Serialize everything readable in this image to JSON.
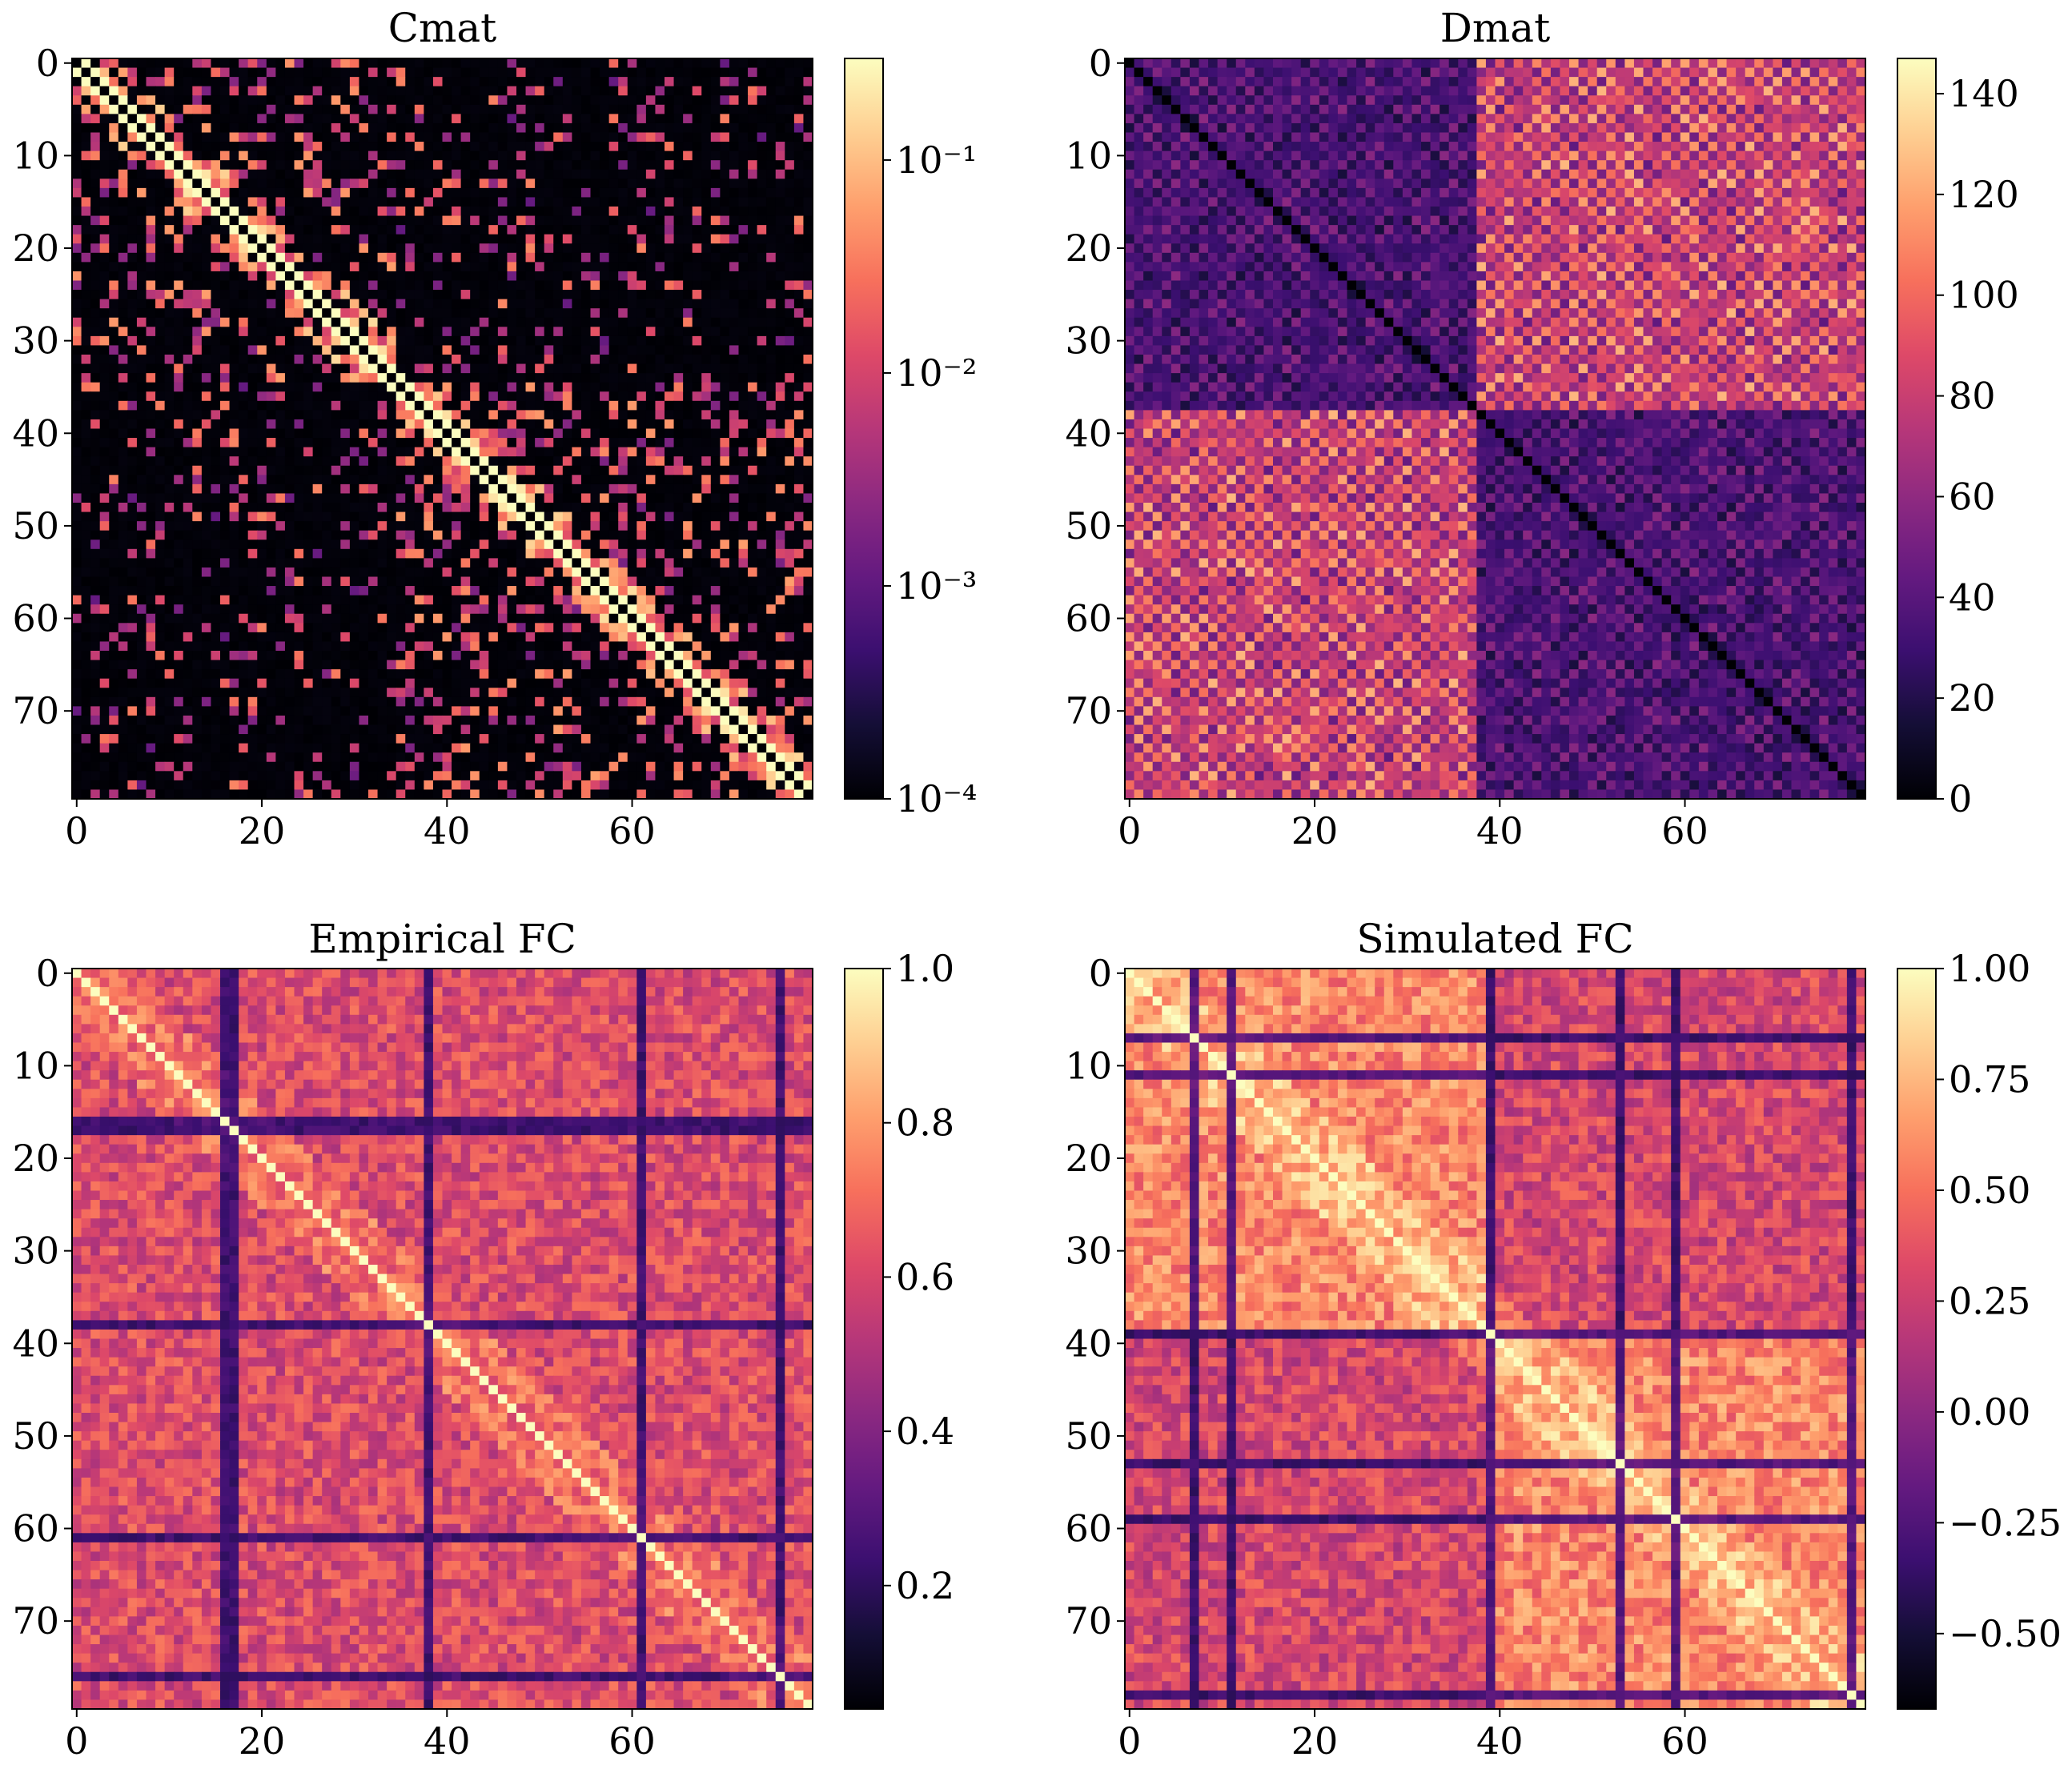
{
  "chart_data": [
    {
      "type": "heatmap",
      "title": "Cmat",
      "xlabel": "",
      "ylabel": "",
      "size": 80,
      "x_ticks": [
        "0",
        "20",
        "40",
        "60"
      ],
      "y_ticks": [
        "0",
        "10",
        "20",
        "30",
        "40",
        "50",
        "60",
        "70"
      ],
      "colormap": "magma",
      "color_scale": "log",
      "clim": [
        0.0001,
        0.3
      ],
      "colorbar_ticks": [
        "10⁻¹",
        "10⁻²",
        "10⁻³",
        "10⁻⁴"
      ],
      "colorbar_tick_values": [
        0.1,
        0.01,
        0.001,
        0.0001
      ],
      "blocks": [
        [
          0,
          35
        ],
        [
          35,
          80
        ]
      ],
      "description": "sparse structural connectivity, bright diagonal, checkerboard hemispheric pattern"
    },
    {
      "type": "heatmap",
      "title": "Dmat",
      "xlabel": "",
      "ylabel": "",
      "size": 80,
      "x_ticks": [
        "0",
        "20",
        "40",
        "60"
      ],
      "y_ticks": [
        "0",
        "10",
        "20",
        "30",
        "40",
        "50",
        "60",
        "70"
      ],
      "colormap": "magma",
      "color_scale": "linear",
      "clim": [
        0,
        147
      ],
      "colorbar_ticks": [
        "140",
        "120",
        "100",
        "80",
        "60",
        "40",
        "20",
        "0"
      ],
      "colorbar_tick_values": [
        140,
        120,
        100,
        80,
        60,
        40,
        20,
        0
      ],
      "blocks": [
        [
          0,
          38
        ],
        [
          38,
          80
        ]
      ]
    },
    {
      "type": "heatmap",
      "title": "Empirical FC",
      "xlabel": "",
      "ylabel": "",
      "size": 80,
      "x_ticks": [
        "0",
        "20",
        "40",
        "60"
      ],
      "y_ticks": [
        "0",
        "10",
        "20",
        "30",
        "40",
        "50",
        "60",
        "70"
      ],
      "colormap": "magma",
      "color_scale": "linear",
      "clim": [
        0.04,
        1.0
      ],
      "colorbar_ticks": [
        "1.0",
        "0.8",
        "0.6",
        "0.4",
        "0.2"
      ],
      "colorbar_tick_values": [
        1.0,
        0.8,
        0.6,
        0.4,
        0.2
      ],
      "dark_rows": [
        16,
        17,
        38,
        61,
        76
      ]
    },
    {
      "type": "heatmap",
      "title": "Simulated FC",
      "xlabel": "",
      "ylabel": "",
      "size": 80,
      "x_ticks": [
        "0",
        "20",
        "40",
        "60"
      ],
      "y_ticks": [
        "0",
        "10",
        "20",
        "30",
        "40",
        "50",
        "60",
        "70"
      ],
      "colormap": "magma",
      "color_scale": "linear",
      "clim": [
        -0.67,
        1.0
      ],
      "colorbar_ticks": [
        "1.00",
        "0.75",
        "0.50",
        "0.25",
        "0.00",
        "−0.25",
        "−0.50"
      ],
      "colorbar_tick_values": [
        1.0,
        0.75,
        0.5,
        0.25,
        0.0,
        -0.25,
        -0.5
      ],
      "blocks": [
        [
          0,
          39
        ],
        [
          39,
          80
        ]
      ],
      "dark_rows": [
        7,
        11,
        39,
        53,
        59,
        78
      ]
    }
  ]
}
